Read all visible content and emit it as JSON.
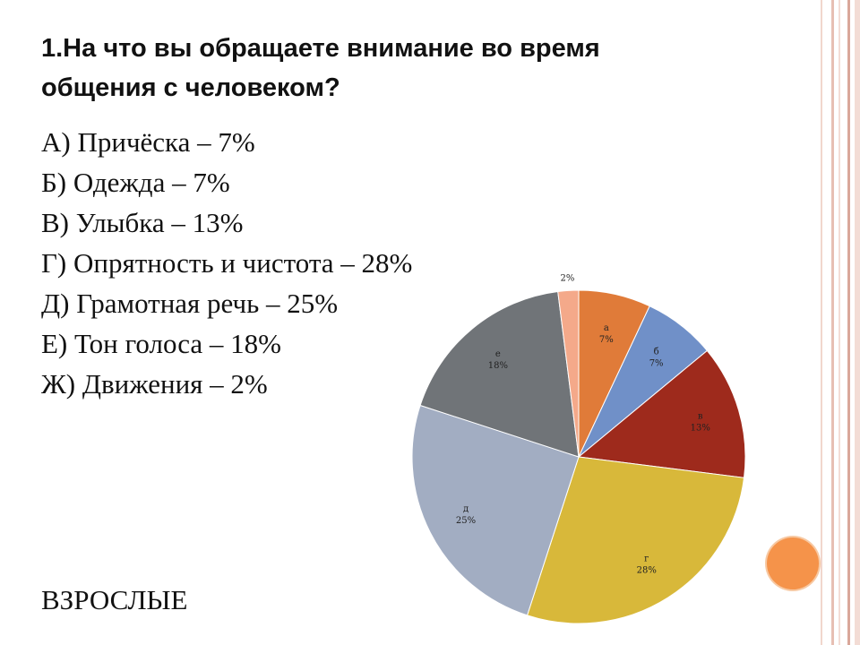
{
  "title": "1.На что вы обращаете внимание во время общения с человеком?",
  "answers": [
    "А) Причёска – 7%",
    "Б) Одежда – 7%",
    "В) Улыбка – 13%",
    "Г) Опрятность и чистота – 28%",
    "Д) Грамотная речь – 25%",
    "Е) Тон голоса – 18%",
    "Ж) Движения – 2%"
  ],
  "footer_label": "ВЗРОСЛЫЕ",
  "colors": {
    "frame_outer": "#f3dcd5",
    "frame_inner": "#d9a79a",
    "accent_dot": "#f5934a"
  },
  "chart_data": {
    "type": "pie",
    "start_angle_deg": 0,
    "direction": "clockwise",
    "slices": [
      {
        "letter": "а",
        "label": "7%",
        "value": 7,
        "color": "#e07b39"
      },
      {
        "letter": "б",
        "label": "7%",
        "value": 7,
        "color": "#7090c8"
      },
      {
        "letter": "в",
        "label": "13%",
        "value": 13,
        "color": "#9e2a1c"
      },
      {
        "letter": "г",
        "label": "28%",
        "value": 28,
        "color": "#d8b83a"
      },
      {
        "letter": "д",
        "label": "25%",
        "value": 25,
        "color": "#a2adc2"
      },
      {
        "letter": "е",
        "label": "18%",
        "value": 18,
        "color": "#707478"
      },
      {
        "letter": "",
        "label": "2%",
        "value": 2,
        "color": "#f4a98a"
      }
    ]
  }
}
